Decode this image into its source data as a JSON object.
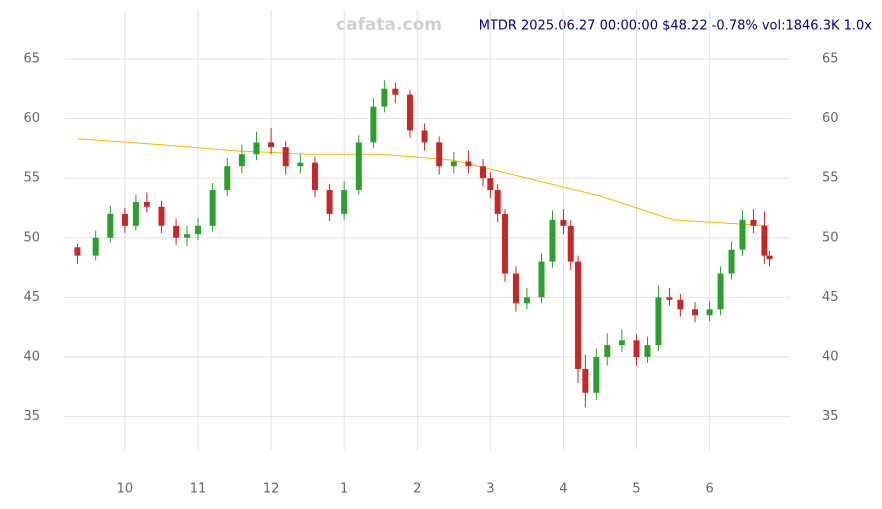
{
  "chart_data": {
    "type": "candlestick",
    "title": "MTDR 2025.06.27 00:00:00 $48.22 -0.78% vol:1846.3K 1.0x",
    "watermark": "cafata.com",
    "x": [
      9.35,
      9.6,
      9.8,
      10.0,
      10.15,
      10.3,
      10.5,
      10.7,
      10.85,
      11.0,
      11.2,
      11.4,
      11.6,
      11.8,
      12.0,
      12.2,
      12.4,
      12.6,
      12.8,
      13.0,
      13.2,
      13.4,
      13.55,
      13.7,
      13.9,
      14.1,
      14.3,
      14.5,
      14.7,
      14.9,
      15.0,
      15.1,
      15.2,
      15.35,
      15.5,
      15.7,
      15.85,
      16.0,
      16.1,
      16.2,
      16.3,
      16.45,
      16.6,
      16.8,
      17.0,
      17.15,
      17.3,
      17.45,
      17.6,
      17.8,
      18.0,
      18.15,
      18.3,
      18.45,
      18.6,
      18.75,
      18.82
    ],
    "open": [
      49.2,
      48.5,
      50,
      52,
      51,
      53,
      52.6,
      51,
      50,
      50.3,
      51,
      54,
      56,
      57,
      58,
      57.6,
      56,
      56.3,
      54,
      52,
      54,
      58,
      61,
      62.5,
      62,
      59,
      58,
      56,
      56.4,
      56,
      55,
      54,
      52,
      47,
      44.5,
      45,
      48,
      51.5,
      51,
      48,
      39,
      37,
      40,
      41,
      41.4,
      40,
      41,
      45,
      44.8,
      44,
      43.5,
      44,
      47,
      49,
      51.5,
      51,
      48.5
    ],
    "high": [
      49.5,
      50.6,
      52.7,
      52.5,
      53.6,
      53.8,
      53.1,
      51.6,
      51,
      51.7,
      54.6,
      56.7,
      57.8,
      58.9,
      59.2,
      58.1,
      57,
      56.8,
      54.5,
      54.7,
      58.6,
      61.7,
      63.2,
      63,
      62.4,
      59.6,
      58.5,
      57.2,
      57.3,
      56.6,
      55.5,
      54.5,
      52.4,
      47.6,
      45.8,
      48.7,
      52.3,
      52.4,
      51.5,
      48.5,
      40.2,
      40.7,
      42,
      42.3,
      41.9,
      41.7,
      46,
      45.8,
      45.3,
      44.6,
      44.7,
      47.6,
      49.7,
      52.3,
      52.4,
      52.2,
      48.9
    ],
    "low": [
      47.8,
      48.1,
      49.6,
      50.4,
      50.6,
      52.1,
      50.4,
      49.4,
      49.3,
      49.8,
      50.5,
      53.5,
      55.4,
      56.5,
      57,
      55.3,
      55.4,
      53.4,
      51.4,
      51.5,
      53.6,
      57.5,
      60.5,
      61.3,
      58.4,
      57.3,
      55.3,
      55.4,
      55.4,
      54.3,
      53.3,
      51.3,
      46.3,
      43.8,
      44,
      44.5,
      47.5,
      50.3,
      47.3,
      37.8,
      35.8,
      36.4,
      39.3,
      40.4,
      39.3,
      39.5,
      40.5,
      44.3,
      43.4,
      42.9,
      43,
      43.5,
      46.5,
      48.5,
      50.4,
      47.8,
      47.6
    ],
    "close": [
      48.5,
      50,
      52,
      51,
      53,
      52.6,
      51,
      50,
      50.3,
      51,
      54,
      56,
      57,
      58,
      57.6,
      56,
      56.3,
      54,
      52,
      54,
      58,
      61,
      62.5,
      62,
      59,
      58,
      56,
      56.4,
      56,
      55,
      54,
      52,
      47,
      44.5,
      45,
      48,
      51.5,
      51,
      48,
      39,
      37,
      40,
      41,
      41.4,
      40,
      41,
      45,
      44.8,
      44,
      43.5,
      44,
      47,
      49,
      51.5,
      51,
      48.5,
      48.2
    ],
    "up_color": "#2ca02c",
    "down_color": "#c62828",
    "lines": [
      {
        "color": "#f5b800",
        "x": [
          9.35,
          10.5,
          11.5,
          12.5,
          13.5,
          14.5,
          15.5,
          16.5,
          17.5,
          18.82
        ],
        "values": [
          58.3,
          57.8,
          57.3,
          57,
          57,
          56.5,
          55,
          53.5,
          51.5,
          51
        ]
      }
    ],
    "xlim": [
      9.18,
      19.1
    ],
    "ylim": [
      32.2,
      69.1
    ],
    "xticks": [
      {
        "value": 10,
        "label": "10"
      },
      {
        "value": 11,
        "label": "11"
      },
      {
        "value": 12,
        "label": "12"
      },
      {
        "value": 13,
        "label": "1"
      },
      {
        "value": 14,
        "label": "2"
      },
      {
        "value": 15,
        "label": "3"
      },
      {
        "value": 16,
        "label": "4"
      },
      {
        "value": 17,
        "label": "5"
      },
      {
        "value": 18,
        "label": "6"
      }
    ],
    "yticks": [
      35,
      40,
      45,
      50,
      55,
      60,
      65
    ],
    "grid": true
  }
}
